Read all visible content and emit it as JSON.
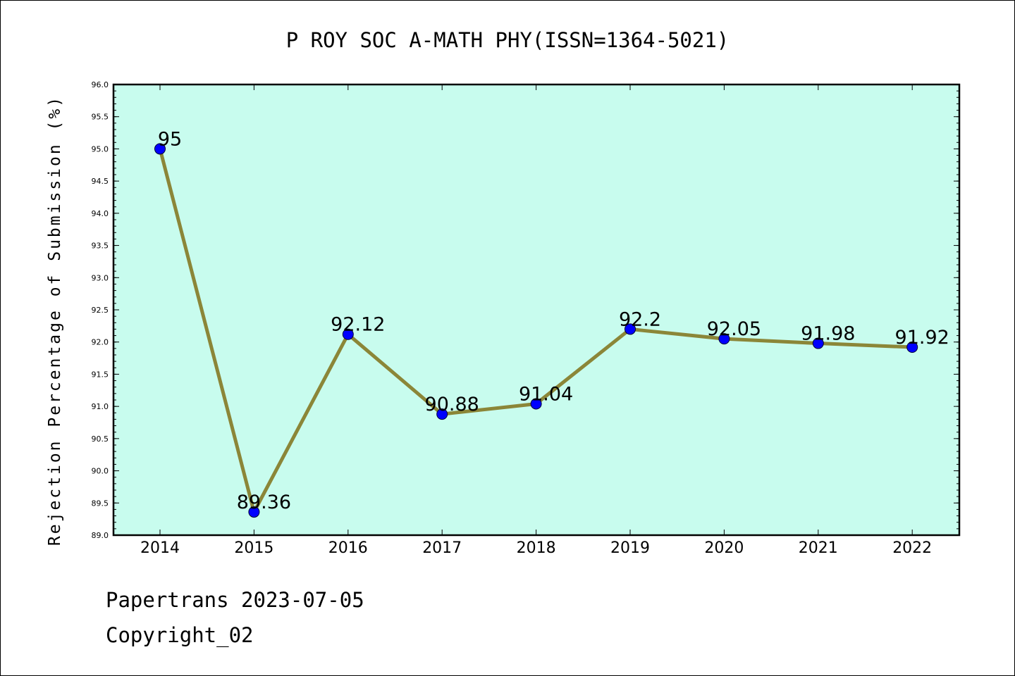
{
  "chart_data": {
    "type": "line",
    "title": "P ROY SOC A-MATH PHY(ISSN=1364-5021)",
    "xlabel": "",
    "ylabel": "Rejection Percentage of Submission (%)",
    "categories": [
      "2014",
      "2015",
      "2016",
      "2017",
      "2018",
      "2019",
      "2020",
      "2021",
      "2022"
    ],
    "values": [
      95,
      89.36,
      92.12,
      90.88,
      91.04,
      92.2,
      92.05,
      91.98,
      91.92
    ],
    "data_labels": [
      "95",
      "89.36",
      "92.12",
      "90.88",
      "91.04",
      "92.2",
      "92.05",
      "91.98",
      "91.92"
    ],
    "ylim": [
      89.0,
      96.0
    ],
    "y_ticks": [
      "89.0",
      "89.5",
      "90.0",
      "90.5",
      "91.0",
      "91.5",
      "92.0",
      "92.5",
      "93.0",
      "93.5",
      "94.0",
      "94.5",
      "95.0",
      "95.5",
      "96.0"
    ],
    "grid": false,
    "colors": {
      "plot_background": "#c8fcee",
      "line": "#8b8638",
      "marker": "#0000ff"
    }
  },
  "footer": {
    "source": "Papertrans 2023-07-05",
    "copyright": "Copyright_02"
  }
}
